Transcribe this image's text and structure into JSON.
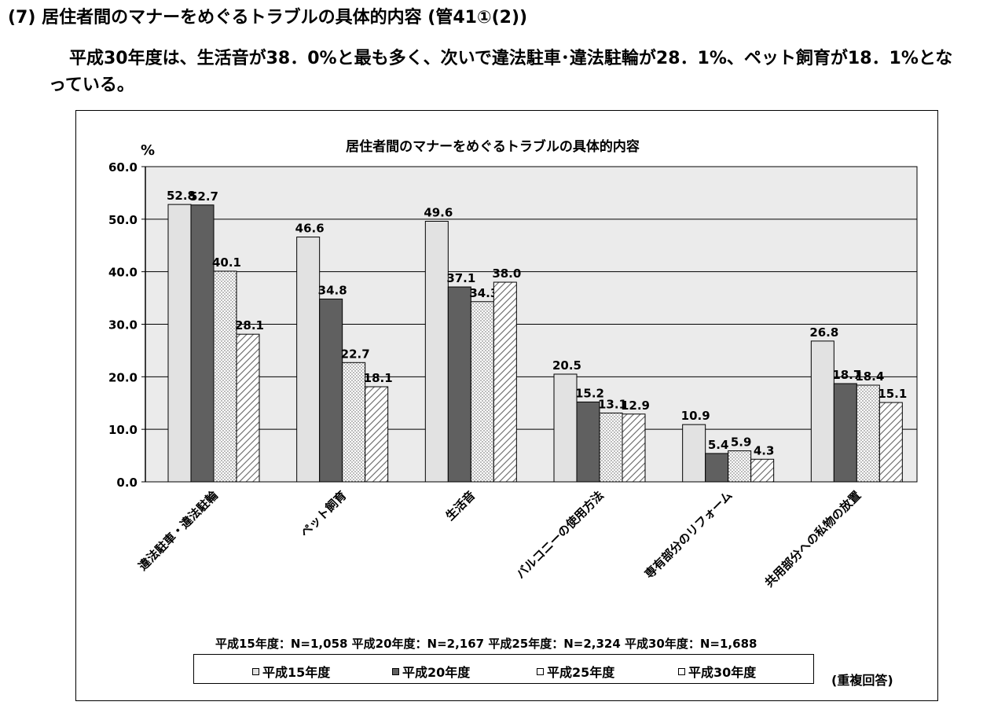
{
  "heading": "(7) 居住者間のマナーをめぐるトラブルの具体的内容 (管41①(2))",
  "summary": "平成30年度は、生活音が38．0%と最も多く、次いで違法駐車･違法駐輪が28．1%、ペット飼育が18．1%となっている。",
  "chart_data": {
    "type": "bar",
    "title": "居住者間のマナーをめぐるトラブルの具体的内容",
    "ylabel": "%",
    "xlabel": "",
    "ylim": [
      0,
      60
    ],
    "yticks": [
      "0.0",
      "10.0",
      "20.0",
      "30.0",
      "40.0",
      "50.0",
      "60.0"
    ],
    "grid": true,
    "legend_position": "bottom",
    "categories": [
      "違法駐車・違法駐輪",
      "ペット飼育",
      "生活音",
      "バルコニーの使用方法",
      "専有部分のリフォーム",
      "共用部分への私物の放置"
    ],
    "series": [
      {
        "name": "平成15年度",
        "values": [
          52.8,
          46.6,
          49.6,
          20.5,
          10.9,
          26.8
        ]
      },
      {
        "name": "平成20年度",
        "values": [
          52.7,
          34.8,
          37.1,
          15.2,
          5.4,
          18.7
        ]
      },
      {
        "name": "平成25年度",
        "values": [
          40.1,
          22.7,
          34.3,
          13.1,
          5.9,
          18.4
        ]
      },
      {
        "name": "平成30年度",
        "values": [
          28.1,
          18.1,
          38.0,
          12.9,
          4.3,
          15.1
        ]
      }
    ]
  },
  "sample_sizes": "平成15年度：N=1,058 平成20年度：N=2,167 平成25年度：N=2,324 平成30年度：N=1,688",
  "legend": [
    "平成15年度",
    "平成20年度",
    "平成25年度",
    "平成30年度"
  ],
  "note": "(重複回答)",
  "colors": {
    "series1": "#e2e2e2",
    "series2": "#606060",
    "plot_bg": "#ebebeb"
  }
}
